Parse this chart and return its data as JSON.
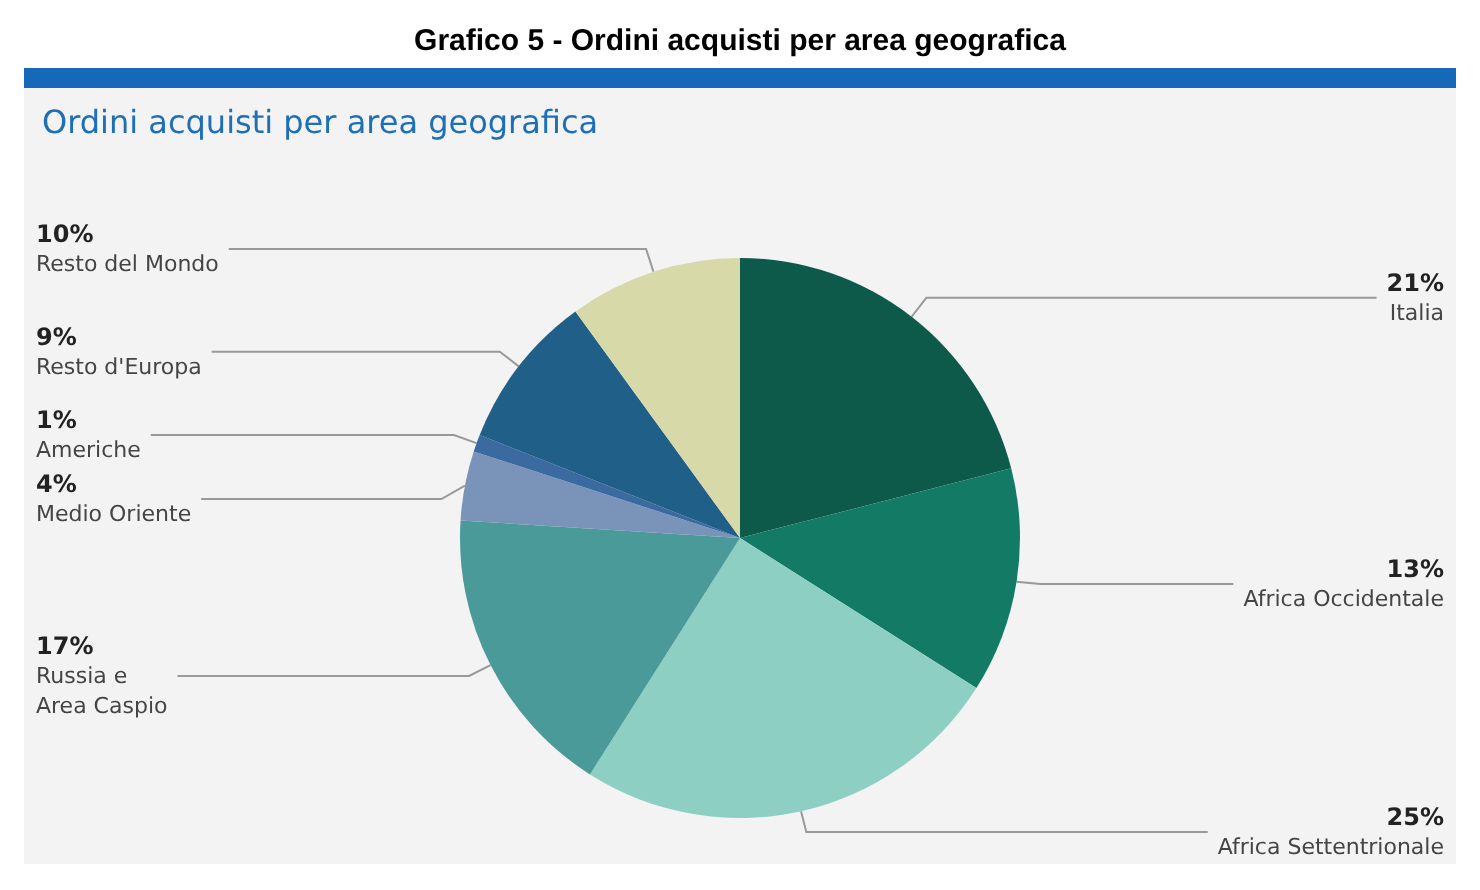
{
  "chart_data": {
    "type": "pie",
    "title": "Grafico 5 - Ordini acquisti per area geografica",
    "subtitle": "Ordini acquisti per area geografica",
    "categories": [
      "Italia",
      "Africa Occidentale",
      "Africa Settentrionale",
      "Russia e\nArea Caspio",
      "Medio Oriente",
      "Americhe",
      "Resto d'Europa",
      "Resto del Mondo"
    ],
    "values": [
      21,
      13,
      25,
      17,
      4,
      1,
      9,
      10
    ],
    "value_labels": [
      "21%",
      "13%",
      "25%",
      "17%",
      "4%",
      "1%",
      "9%",
      "10%"
    ],
    "colors": [
      "#0e5a4a",
      "#137a66",
      "#8ecfc4",
      "#4a9a9a",
      "#7a93b8",
      "#3a6aa0",
      "#1f5f88",
      "#d8d9a8"
    ],
    "data_labels": true,
    "legend": false
  }
}
